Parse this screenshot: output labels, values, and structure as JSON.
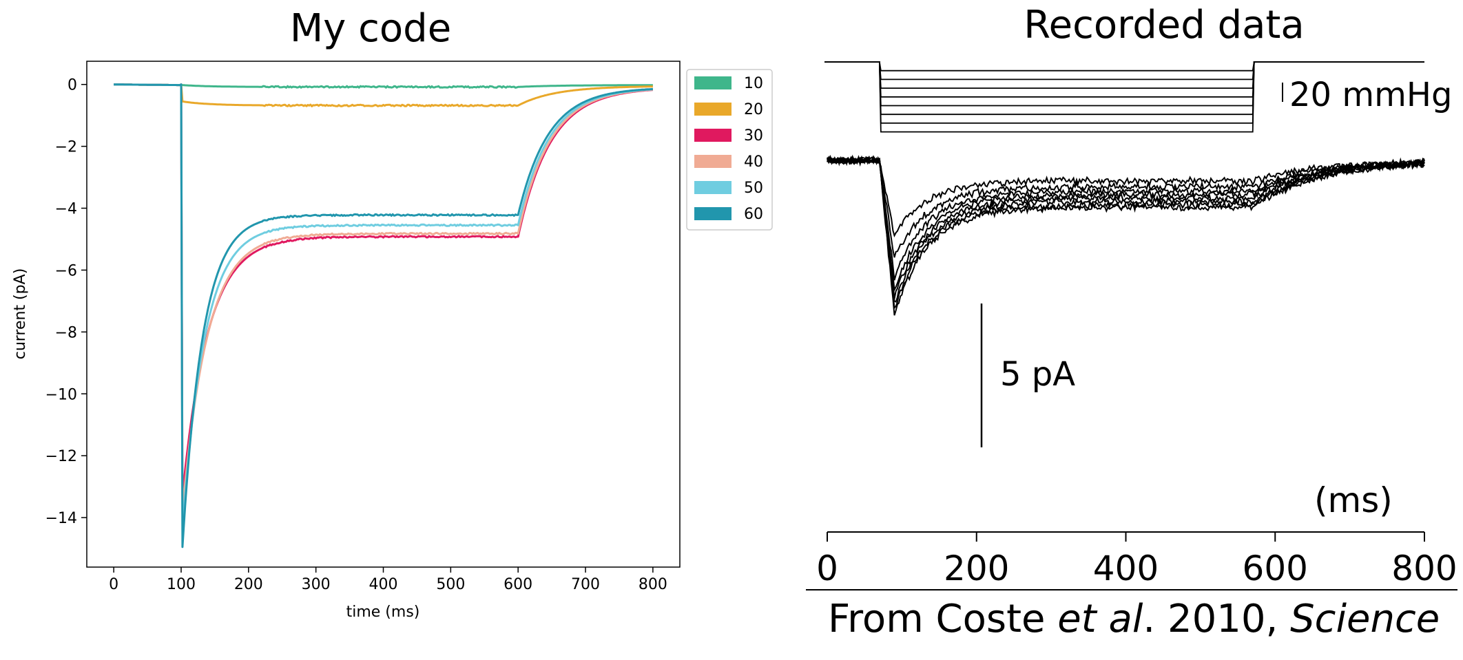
{
  "left_panel": {
    "title": "My code"
  },
  "right_panel": {
    "title": "Recorded data",
    "pressure_scale_label": "20 mmHg",
    "current_scale_label": "5 pA",
    "x_unit_label": "(ms)",
    "x_ticks": [
      "0",
      "200",
      "400",
      "600",
      "800"
    ],
    "citation": {
      "prefix": "From Coste ",
      "italic1": "et al",
      "middle": ". 2010, ",
      "italic2": "Science"
    }
  },
  "chart_data": [
    {
      "type": "line",
      "title": "My code",
      "xlabel": "time (ms)",
      "ylabel": "current (pA)",
      "xlim": [
        -40,
        840
      ],
      "ylim": [
        -15.6,
        0.75
      ],
      "x_ticks": [
        0,
        100,
        200,
        300,
        400,
        500,
        600,
        700,
        800
      ],
      "y_ticks": [
        0,
        -2,
        -4,
        -6,
        -8,
        -10,
        -12,
        -14
      ],
      "grid": false,
      "legend_position": "outside-top-right",
      "series": [
        {
          "name": "10",
          "color": "#3fb68b",
          "step_start": 100,
          "step_end": 600,
          "peak": -0.02,
          "plateau": -0.08,
          "tau_decay": 40,
          "tau_off": 60,
          "tail": -0.02
        },
        {
          "name": "20",
          "color": "#e9a82a",
          "step_start": 100,
          "step_end": 600,
          "peak": -0.55,
          "plateau": -0.68,
          "tau_decay": 40,
          "tau_off": 55,
          "tail": -0.05
        },
        {
          "name": "30",
          "color": "#e0195f",
          "step_start": 100,
          "step_end": 600,
          "peak": -13.3,
          "plateau": -4.92,
          "tau_decay": 38,
          "tau_off": 48,
          "tail": -0.1
        },
        {
          "name": "40",
          "color": "#f0ab94",
          "step_start": 100,
          "step_end": 600,
          "peak": -13.8,
          "plateau": -4.82,
          "tau_decay": 37,
          "tau_off": 47,
          "tail": -0.1
        },
        {
          "name": "50",
          "color": "#6fcde0",
          "step_start": 100,
          "step_end": 600,
          "peak": -14.4,
          "plateau": -4.55,
          "tau_decay": 33,
          "tau_off": 46,
          "tail": -0.1
        },
        {
          "name": "60",
          "color": "#2196ad",
          "step_start": 100,
          "step_end": 600,
          "peak": -14.95,
          "plateau": -4.22,
          "tau_decay": 30,
          "tau_off": 45,
          "tail": -0.1
        }
      ]
    },
    {
      "type": "line",
      "title": "Recorded data",
      "xlabel": "(ms)",
      "xlim": [
        0,
        800
      ],
      "x_ticks": [
        0,
        200,
        400,
        600,
        800
      ],
      "grid": false,
      "color": "#000000",
      "pressure_steps": [
        1,
        2,
        3,
        4,
        5,
        6,
        7,
        8
      ],
      "step_start": 70,
      "step_end": 570,
      "current_sweeps": [
        {
          "peak": -6.5,
          "plateau": -1.8
        },
        {
          "peak": -8.5,
          "plateau": -2.3
        },
        {
          "peak": -10.2,
          "plateau": -2.7
        },
        {
          "peak": -11.3,
          "plateau": -3.0
        },
        {
          "peak": -12.0,
          "plateau": -3.3
        },
        {
          "peak": -12.5,
          "plateau": -3.6
        },
        {
          "peak": -13.0,
          "plateau": -3.9
        },
        {
          "peak": -13.5,
          "plateau": -4.1
        }
      ]
    }
  ]
}
